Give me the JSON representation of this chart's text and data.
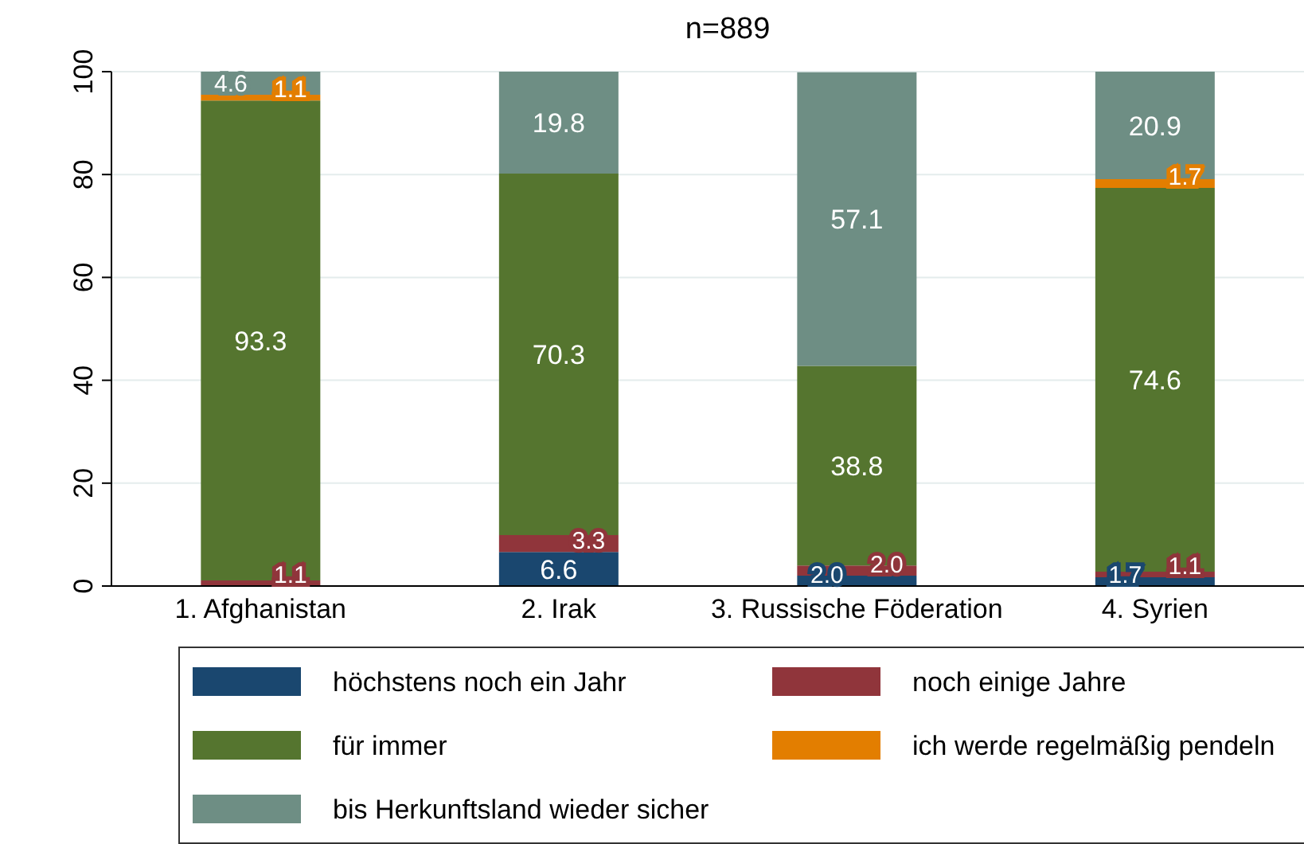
{
  "chart_data": {
    "type": "bar",
    "title": "n=889",
    "stacked": true,
    "categories": [
      "1. Afghanistan",
      "2. Irak",
      "3. Russische Föderation",
      "4. Syrien"
    ],
    "series": [
      {
        "name": "höchstens noch ein Jahr",
        "color": "#1a476f",
        "values": [
          0,
          6.6,
          2.0,
          1.7
        ],
        "value_labels": [
          null,
          "6.6",
          "2.0",
          "1.7"
        ]
      },
      {
        "name": "noch einige Jahre",
        "color": "#90353b",
        "values": [
          1.1,
          3.3,
          2.0,
          1.1
        ],
        "value_labels": [
          "1.1",
          "3.3",
          "2.0",
          "1.1"
        ]
      },
      {
        "name": "für immer",
        "color": "#55752f",
        "values": [
          93.3,
          70.3,
          38.8,
          74.6
        ],
        "value_labels": [
          "93.3",
          "70.3",
          "38.8",
          "74.6"
        ]
      },
      {
        "name": "ich werde regelmäßig pendeln",
        "color": "#e37e00",
        "values": [
          1.1,
          0,
          0,
          1.7
        ],
        "value_labels": [
          "1.1",
          null,
          null,
          "1.7"
        ]
      },
      {
        "name": "bis Herkunftsland wieder sicher",
        "color": "#6e8e84",
        "values": [
          4.6,
          19.8,
          57.1,
          20.9
        ],
        "value_labels": [
          "4.6",
          "19.8",
          "57.1",
          "20.9"
        ]
      }
    ],
    "ylim": [
      0,
      100
    ],
    "yticks": [
      0,
      20,
      40,
      60,
      80,
      100
    ],
    "grid": "y",
    "legend": "bottom"
  }
}
